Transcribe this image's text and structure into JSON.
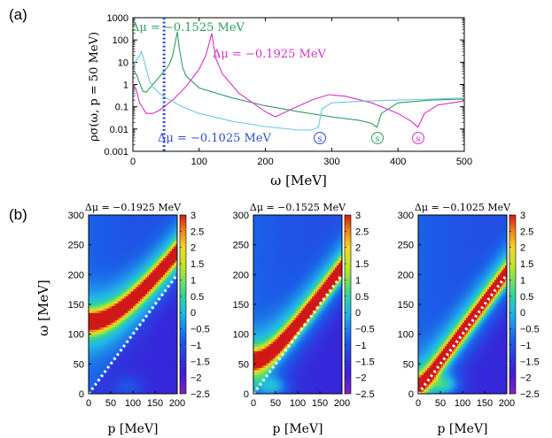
{
  "colors": {
    "green": "#2e9e5e",
    "magenta": "#d631c9",
    "cyan": "#6ec6e3",
    "blue": "#2f4bd6",
    "axis": "#000000"
  },
  "panel_a": {
    "label": "(a)",
    "ylabel": "ρσ(ω, p = 50 MeV)",
    "xlabel": "ω [MeV]",
    "xticks": [
      "0",
      "100",
      "200",
      "300",
      "400",
      "500"
    ],
    "yticks": [
      "0.001",
      "0.01",
      "0.1",
      "1",
      "10",
      "100",
      "1000"
    ],
    "annotations": {
      "green": "Δμ = −0.1525 MeV",
      "magenta": "Δμ = −0.1925 MeV",
      "blue": "Δμ = −0.1025 MeV"
    },
    "s_marker": "s"
  },
  "panel_b": {
    "label": "(b)",
    "ylabel": "ω [MeV]",
    "xlabel": "p [MeV]",
    "xticks": [
      "0",
      "50",
      "100",
      "150",
      "200"
    ],
    "yticks": [
      "0",
      "50",
      "100",
      "150",
      "200",
      "250",
      "300"
    ],
    "cbar_ticks": [
      "3",
      "2.5",
      "2",
      "1.5",
      "1",
      "0.5",
      "0",
      "−0.5",
      "−1",
      "−1.5",
      "−2",
      "−2.5"
    ],
    "titles": [
      "Δμ = −0.1925 MeV",
      "Δμ = −0.1525 MeV",
      "Δμ = −0.1025 MeV"
    ]
  },
  "chart_data": [
    {
      "type": "line",
      "title": "",
      "xlabel": "ω [MeV]",
      "ylabel": "ρσ(ω, p = 50 MeV)",
      "xlim": [
        0,
        500
      ],
      "ylim": [
        0.001,
        1000
      ],
      "yscale": "log",
      "vline_x": 47,
      "series": [
        {
          "name": "Δμ = −0.1525 MeV",
          "color": "green",
          "x": [
            0,
            5,
            10,
            15,
            20,
            30,
            40,
            50,
            55,
            60,
            64,
            67,
            70,
            75,
            80,
            100,
            150,
            200,
            250,
            300,
            340,
            360,
            368,
            375,
            400,
            450,
            500
          ],
          "y": [
            4.5,
            3,
            1.2,
            0.5,
            0.45,
            1,
            2.2,
            5,
            8,
            20,
            80,
            230,
            40,
            6,
            2.5,
            0.7,
            0.25,
            0.11,
            0.06,
            0.035,
            0.025,
            0.018,
            0.012,
            0.05,
            0.15,
            0.2,
            0.22
          ]
        },
        {
          "name": "Δμ = −0.1925 MeV",
          "color": "magenta",
          "x": [
            0,
            5,
            10,
            20,
            30,
            40,
            60,
            80,
            100,
            110,
            115,
            119,
            125,
            135,
            160,
            200,
            215,
            240,
            270,
            295,
            320,
            360,
            400,
            420,
            430,
            440,
            460,
            500
          ],
          "y": [
            1.1,
            0.6,
            0.15,
            0.05,
            0.05,
            0.07,
            0.2,
            0.8,
            5,
            20,
            70,
            200,
            15,
            3,
            0.4,
            0.06,
            0.035,
            0.08,
            0.2,
            0.35,
            0.3,
            0.15,
            0.05,
            0.022,
            0.012,
            0.05,
            0.12,
            0.18
          ]
        },
        {
          "name": "Δμ = −0.1025 MeV",
          "color": "cyan",
          "x": [
            0,
            5,
            10,
            13,
            16,
            20,
            25,
            30,
            40,
            50,
            75,
            100,
            150,
            200,
            250,
            270,
            280,
            285,
            300,
            350,
            400,
            450,
            500
          ],
          "y": [
            7,
            12,
            20,
            30,
            15,
            5,
            1.5,
            0.8,
            0.4,
            0.25,
            0.1,
            0.05,
            0.022,
            0.013,
            0.009,
            0.009,
            0.012,
            0.08,
            0.15,
            0.18,
            0.2,
            0.22,
            0.25
          ]
        }
      ],
      "annotations": [
        {
          "text": "Δμ = −0.1525 MeV",
          "color": "green"
        },
        {
          "text": "Δμ = −0.1925 MeV",
          "color": "magenta"
        },
        {
          "text": "Δμ = −0.1025 MeV",
          "color": "blue"
        },
        {
          "text": "s",
          "series": "cyan",
          "x": 283
        },
        {
          "text": "s",
          "series": "green",
          "x": 370
        },
        {
          "text": "s",
          "series": "magenta",
          "x": 432
        }
      ]
    },
    {
      "type": "heatmap",
      "title": "Δμ = −0.1925 MeV",
      "xlabel": "p [MeV]",
      "ylabel": "ω [MeV]",
      "xlim": [
        0,
        200
      ],
      "ylim": [
        0,
        300
      ],
      "colorbar_range": [
        -2.5,
        3
      ],
      "ridge": {
        "omega_at_p0": 110,
        "slope_near_light_cone": 1.0,
        "curvature_p0": 90
      },
      "light_cone": "ω = p",
      "low_blob": {
        "p": 90,
        "omega": 12,
        "level": -0.4
      }
    },
    {
      "type": "heatmap",
      "title": "Δμ = −0.1525 MeV",
      "xlabel": "p [MeV]",
      "ylabel": "ω [MeV]",
      "xlim": [
        0,
        200
      ],
      "ylim": [
        0,
        300
      ],
      "colorbar_range": [
        -2.5,
        3
      ],
      "ridge": {
        "omega_at_p0": 50,
        "slope_near_light_cone": 1.0,
        "curvature_p0": 50
      },
      "light_cone": "ω = p",
      "low_blob": {
        "p": 45,
        "omega": 12,
        "level": 0.3
      }
    },
    {
      "type": "heatmap",
      "title": "Δμ = −0.1025 MeV",
      "xlabel": "p [MeV]",
      "ylabel": "ω [MeV]",
      "xlim": [
        0,
        200
      ],
      "ylim": [
        0,
        300
      ],
      "colorbar_range": [
        -2.5,
        3
      ],
      "ridge": {
        "omega_at_p0": 10,
        "slope_near_light_cone": 1.0,
        "curvature_p0": 30
      },
      "light_cone": "ω = p",
      "low_blob": {
        "p": 60,
        "omega": 15,
        "level": 0.5
      }
    }
  ]
}
